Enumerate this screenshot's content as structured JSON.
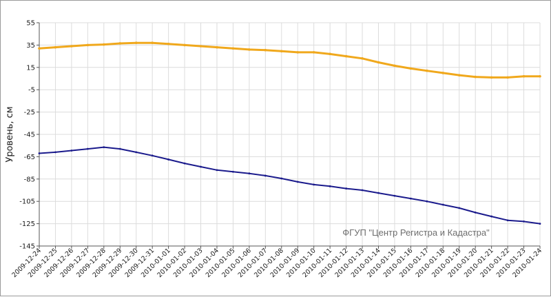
{
  "chart_data": {
    "type": "line",
    "title": "",
    "xlabel": "",
    "ylabel": "Уровень, см",
    "ylim": [
      -145,
      55
    ],
    "yticks": [
      55,
      35,
      15,
      -5,
      -25,
      -45,
      -65,
      -85,
      -105,
      -125,
      -145
    ],
    "x": [
      "2009-12-24",
      "2009-12-25",
      "2009-12-26",
      "2009-12-27",
      "2009-12-28",
      "2009-12-29",
      "2009-12-30",
      "2009-12-31",
      "2010-01-01",
      "2010-01-02",
      "2010-01-03",
      "2010-01-04",
      "2010-01-05",
      "2010-01-06",
      "2010-01-07",
      "2010-01-08",
      "2010-01-09",
      "2010-01-10",
      "2010-01-11",
      "2010-01-12",
      "2010-01-13",
      "2010-01-14",
      "2010-01-15",
      "2010-01-16",
      "2010-01-17",
      "2010-01-18",
      "2010-01-19",
      "2010-01-20",
      "2010-01-21",
      "2010-01-22",
      "2010-01-23",
      "2010-01-24"
    ],
    "grid": true,
    "watermark": "ФГУП \"Центр Регистра и Кадастра\"",
    "series": [
      {
        "color": "#f0a81c",
        "values": [
          32,
          33,
          34,
          35,
          35.5,
          36.5,
          37,
          37,
          36,
          35,
          34,
          33,
          32,
          31,
          30.5,
          29.5,
          28.5,
          28.5,
          27,
          25,
          23,
          19.5,
          16.5,
          14,
          12,
          10,
          8,
          6.5,
          6,
          6,
          7,
          7
        ]
      },
      {
        "color": "#1a1a8c",
        "values": [
          -62,
          -61,
          -59.5,
          -58,
          -56.5,
          -58,
          -61,
          -64,
          -67.5,
          -71,
          -74,
          -77,
          -78.5,
          -80,
          -82,
          -84.5,
          -87.5,
          -90,
          -91.5,
          -93.5,
          -95,
          -97.5,
          -100,
          -102.5,
          -105,
          -108,
          -111,
          -115,
          -118.5,
          -122,
          -123,
          -125
        ]
      }
    ]
  }
}
